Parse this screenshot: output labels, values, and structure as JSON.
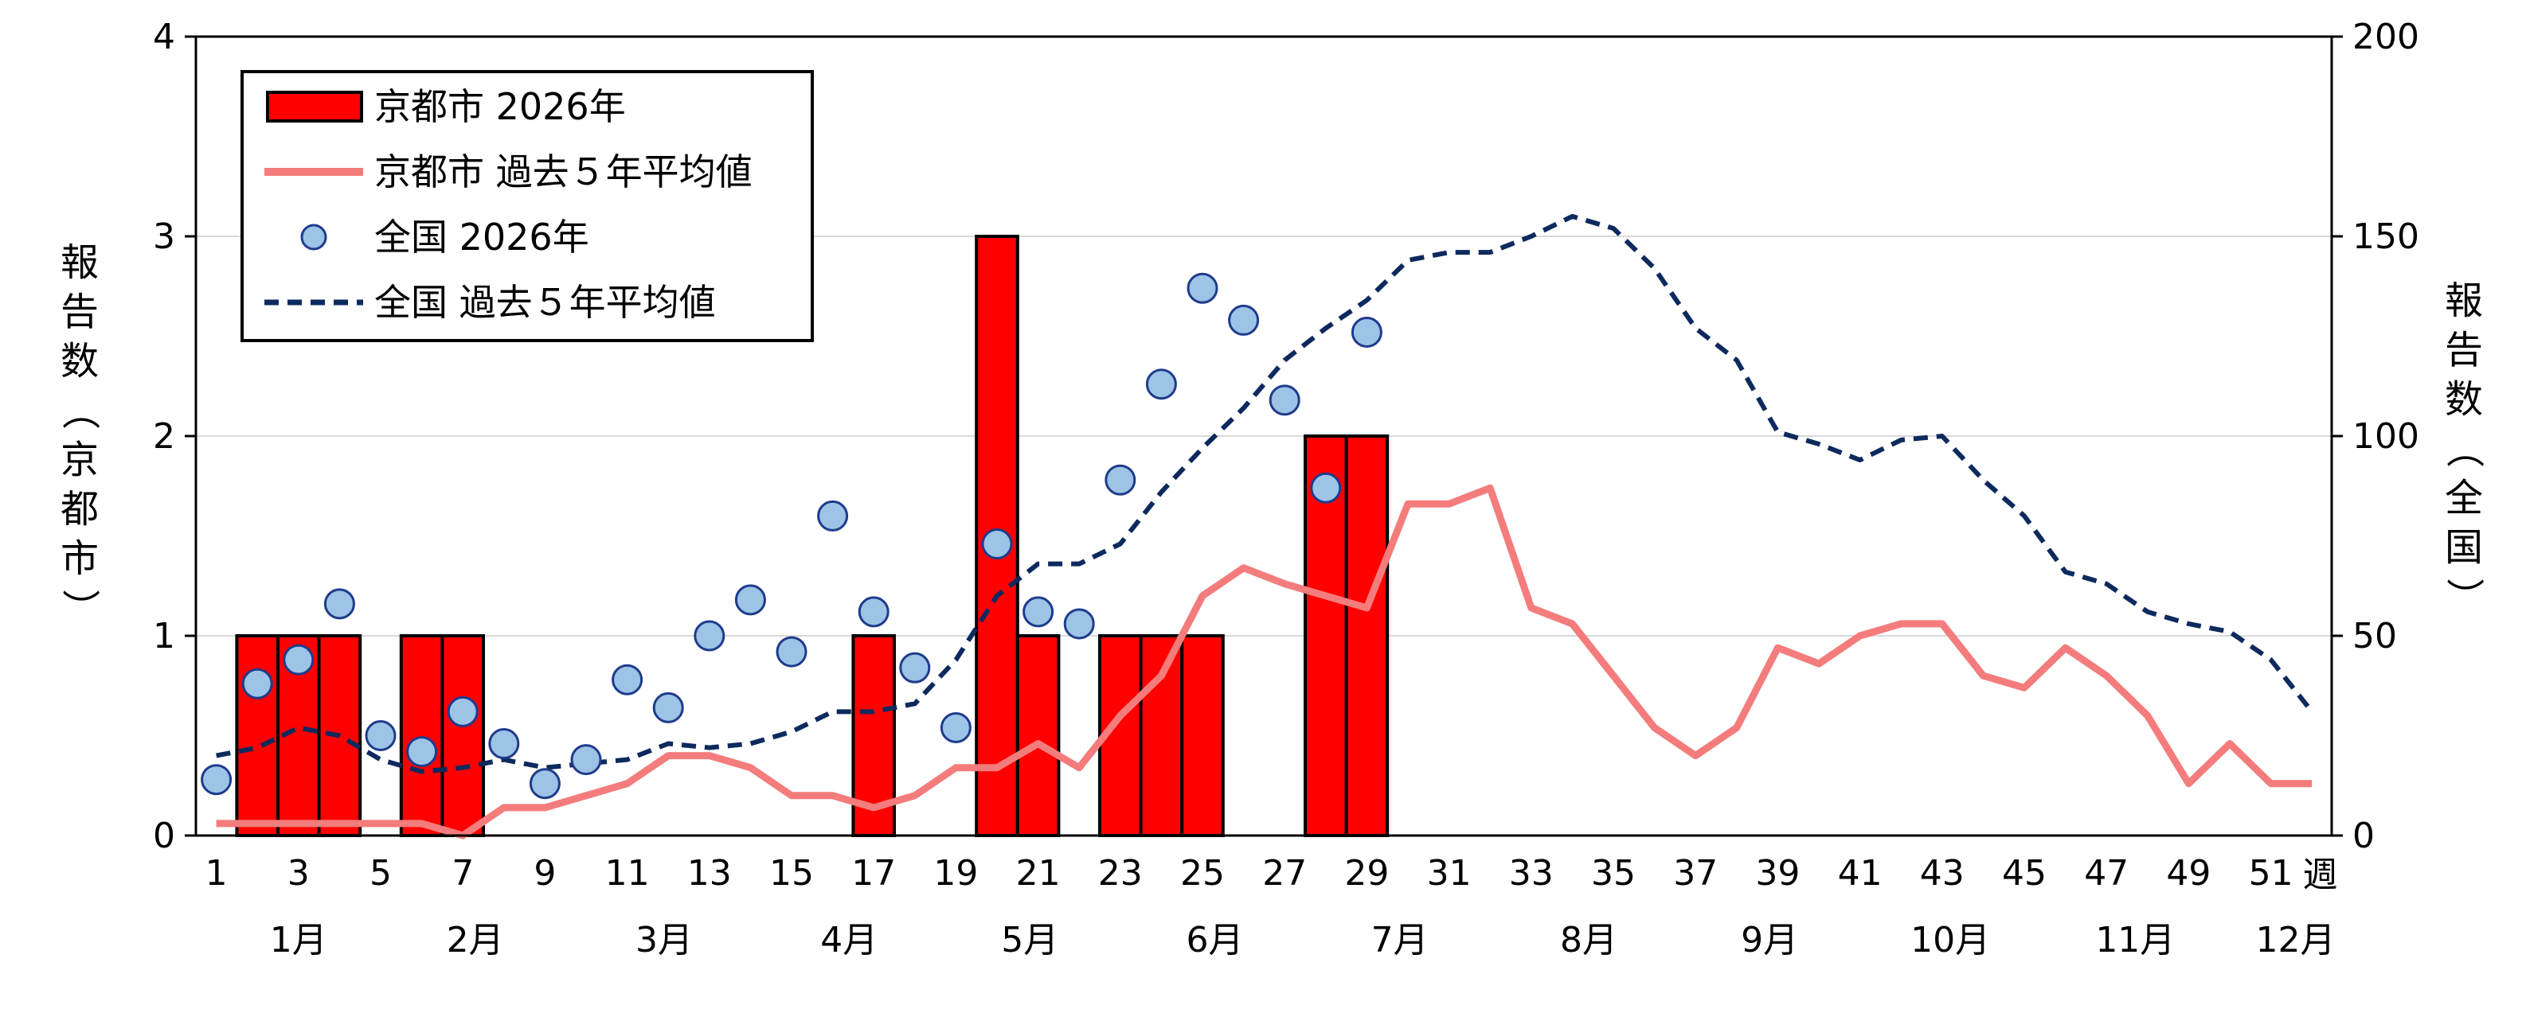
{
  "chart_data": {
    "type": "bar",
    "x_unit_label": "週",
    "x_ticks": [
      1,
      3,
      5,
      7,
      9,
      11,
      13,
      15,
      17,
      19,
      21,
      23,
      25,
      27,
      29,
      31,
      33,
      35,
      37,
      39,
      41,
      43,
      45,
      47,
      49,
      51
    ],
    "months": [
      "1月",
      "2月",
      "3月",
      "4月",
      "5月",
      "6月",
      "7月",
      "8月",
      "9月",
      "10月",
      "11月",
      "12月"
    ],
    "y_left": {
      "label": "報告数（京都市）",
      "label_chars": [
        "報",
        "告",
        "数",
        "（",
        "京",
        "都",
        "市",
        "）"
      ],
      "ticks": [
        0,
        1,
        2,
        3,
        4
      ],
      "lim": [
        0,
        4
      ]
    },
    "y_right": {
      "label": "報告数（全国）",
      "label_chars": [
        "報",
        "告",
        "数",
        "（",
        "全",
        "国",
        "）"
      ],
      "ticks": [
        0,
        50,
        100,
        150,
        200
      ],
      "lim": [
        0,
        200
      ]
    },
    "series": [
      {
        "name": "京都市 2026年",
        "type": "bar",
        "axis": "left",
        "color": "#FF0000",
        "x": [
          2,
          3,
          4,
          6,
          7,
          17,
          20,
          21,
          23,
          24,
          25,
          28,
          29
        ],
        "values": [
          1,
          1,
          1,
          1,
          1,
          1,
          3,
          1,
          1,
          1,
          1,
          2,
          2
        ]
      },
      {
        "name": "京都市 過去５年平均値",
        "type": "line",
        "axis": "left",
        "color": "#F47C7C",
        "x": [
          1,
          2,
          3,
          4,
          5,
          6,
          7,
          8,
          9,
          10,
          11,
          12,
          13,
          14,
          15,
          16,
          17,
          18,
          19,
          20,
          21,
          22,
          23,
          24,
          25,
          26,
          27,
          28,
          29,
          30,
          31,
          32,
          33,
          34,
          35,
          36,
          37,
          38,
          39,
          40,
          41,
          42,
          43,
          44,
          45,
          46,
          47,
          48,
          49,
          50,
          51,
          52
        ],
        "values": [
          0.06,
          0.06,
          0.06,
          0.06,
          0.06,
          0.06,
          0.0,
          0.14,
          0.14,
          0.2,
          0.26,
          0.4,
          0.4,
          0.34,
          0.2,
          0.2,
          0.14,
          0.2,
          0.34,
          0.34,
          0.46,
          0.34,
          0.6,
          0.8,
          1.2,
          1.34,
          1.26,
          1.2,
          1.14,
          1.66,
          1.66,
          1.74,
          1.14,
          1.06,
          0.8,
          0.54,
          0.4,
          0.54,
          0.94,
          0.86,
          1.0,
          1.06,
          1.06,
          0.8,
          0.74,
          0.94,
          0.8,
          0.6,
          0.26,
          0.46,
          0.26,
          0.26
        ]
      },
      {
        "name": "全国 2026年",
        "type": "scatter",
        "axis": "right",
        "color": "#9DC3E6",
        "x": [
          1,
          2,
          3,
          4,
          5,
          6,
          7,
          8,
          9,
          10,
          11,
          12,
          13,
          14,
          15,
          16,
          17,
          18,
          19,
          20,
          21,
          22,
          23,
          24,
          25,
          26,
          27,
          28,
          29
        ],
        "values": [
          14,
          38,
          44,
          58,
          25,
          21,
          31,
          23,
          13,
          19,
          39,
          32,
          50,
          59,
          46,
          80,
          56,
          42,
          27,
          73,
          56,
          53,
          89,
          113,
          137,
          129,
          109,
          87,
          126
        ]
      },
      {
        "name": "全国 過去５年平均値",
        "type": "line",
        "axis": "right",
        "style": "dashed",
        "color": "#0D2A5E",
        "x": [
          1,
          2,
          3,
          4,
          5,
          6,
          7,
          8,
          9,
          10,
          11,
          12,
          13,
          14,
          15,
          16,
          17,
          18,
          19,
          20,
          21,
          22,
          23,
          24,
          25,
          26,
          27,
          28,
          29,
          30,
          31,
          32,
          33,
          34,
          35,
          36,
          37,
          38,
          39,
          40,
          41,
          42,
          43,
          44,
          45,
          46,
          47,
          48,
          49,
          50,
          51,
          52
        ],
        "values": [
          20,
          22,
          27,
          25,
          19,
          16,
          17,
          19,
          17,
          18,
          19,
          23,
          22,
          23,
          26,
          31,
          31,
          33,
          44,
          60,
          68,
          68,
          73,
          86,
          97,
          107,
          119,
          127,
          134,
          144,
          146,
          146,
          150,
          155,
          152,
          142,
          127,
          119,
          101,
          98,
          94,
          99,
          100,
          89,
          80,
          66,
          63,
          56,
          53,
          51,
          44,
          31
        ]
      }
    ],
    "legend": {
      "position": "top-left",
      "entries": [
        "京都市 2026年",
        "京都市 過去５年平均値",
        "全国 2026年",
        "全国 過去５年平均値"
      ]
    },
    "grid": {
      "y": true,
      "x": false
    }
  }
}
